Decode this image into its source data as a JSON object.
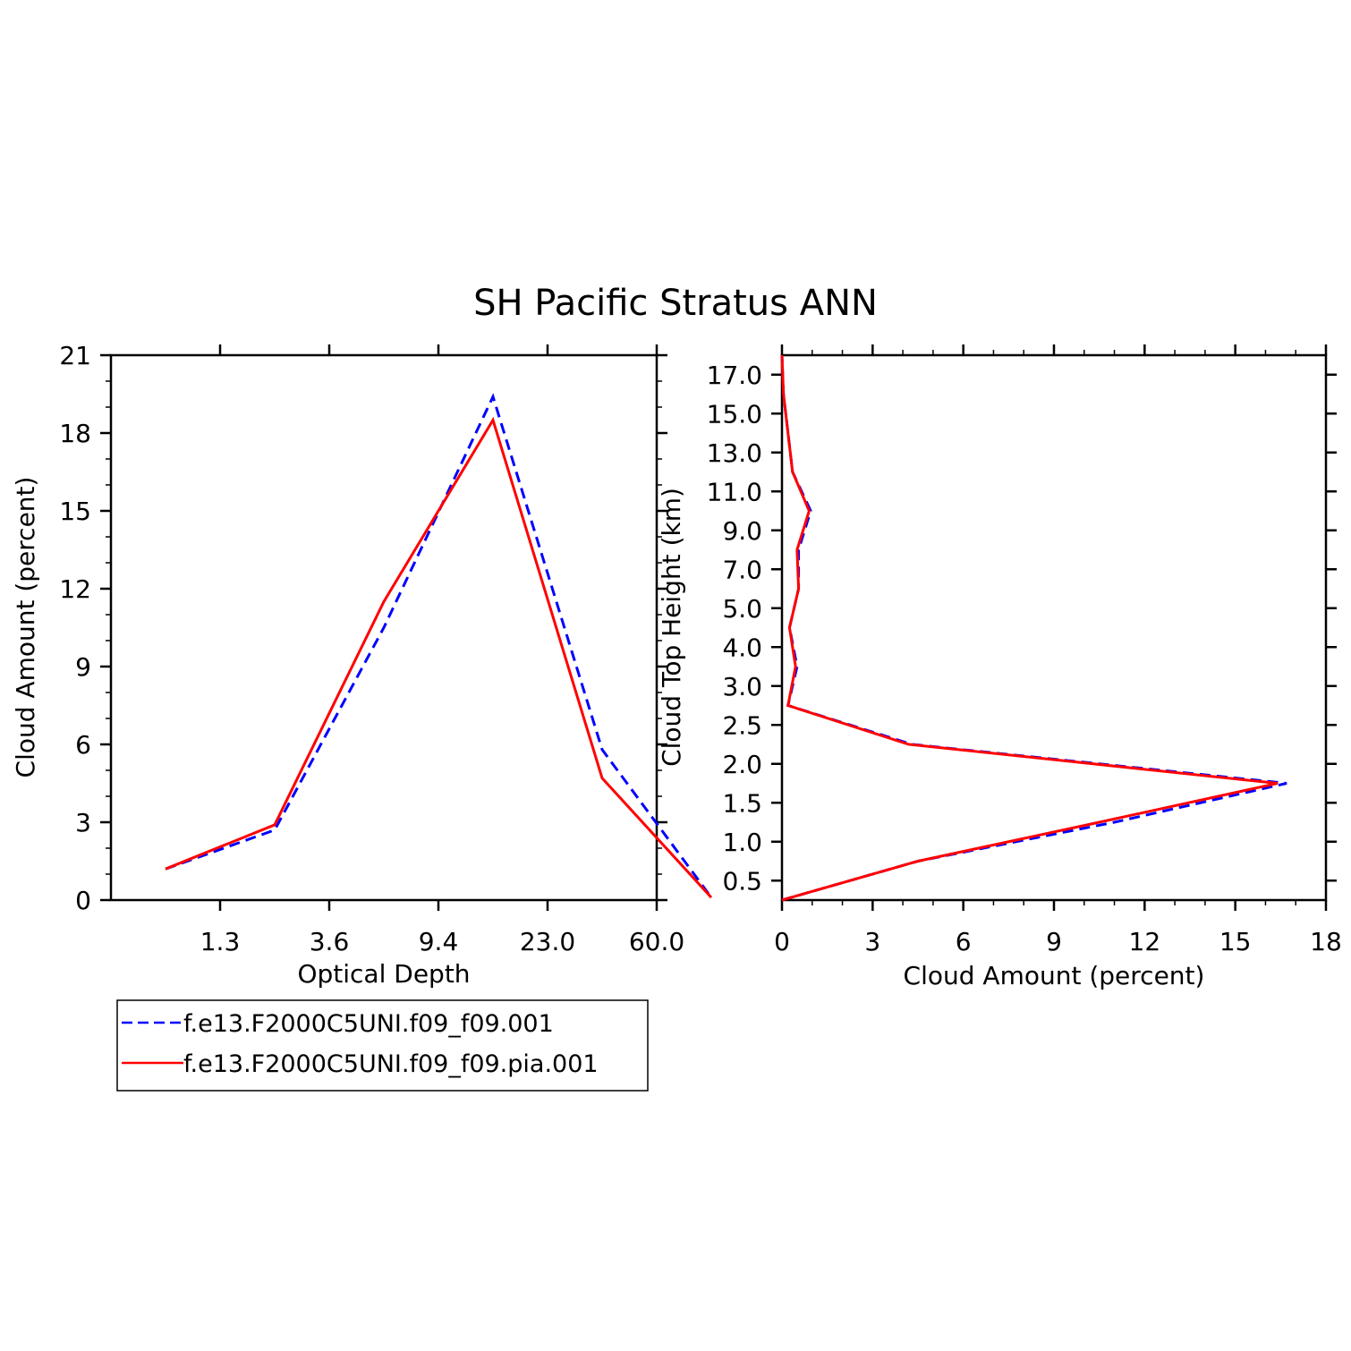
{
  "title": "SH Pacific Stratus ANN",
  "colors": {
    "series_a": "#0000ff",
    "series_b": "#ff0000",
    "axis": "#000000"
  },
  "legend": {
    "entries": [
      "f.e13.F2000C5UNI.f09_f09.001",
      "f.e13.F2000C5UNI.f09_f09.pia.001"
    ]
  },
  "chart_data": [
    {
      "type": "line",
      "xlabel": "Optical Depth",
      "ylabel": "Cloud Amount (percent)",
      "x": [
        1,
        2,
        3,
        4,
        5,
        6
      ],
      "xlim": [
        0.5,
        5.5
      ],
      "xtick_positions": [
        1.5,
        2.5,
        3.5,
        4.5,
        5.5
      ],
      "xtick_labels": [
        "1.3",
        "3.6",
        "9.4",
        "23.0",
        "60.0"
      ],
      "ylim": [
        0,
        21
      ],
      "yticks": [
        0,
        3,
        6,
        9,
        12,
        15,
        18,
        21
      ],
      "series": [
        {
          "name": "f.e13.F2000C5UNI.f09_f09.001",
          "style": "dashed",
          "color": "#0000ff",
          "values": [
            1.2,
            2.7,
            10.5,
            19.4,
            5.8,
            0.1
          ]
        },
        {
          "name": "f.e13.F2000C5UNI.f09_f09.pia.001",
          "style": "solid",
          "color": "#ff0000",
          "values": [
            1.2,
            2.9,
            11.5,
            18.5,
            4.7,
            0.1
          ]
        }
      ]
    },
    {
      "type": "line",
      "orientation": "vertical-profile",
      "xlabel": "Cloud Amount (percent)",
      "ylabel": "Cloud Top Height (km)",
      "xlim": [
        0,
        18
      ],
      "xticks": [
        0,
        3,
        6,
        9,
        12,
        15,
        18
      ],
      "ytick_labels": [
        "0.5",
        "1.0",
        "1.5",
        "2.0",
        "2.5",
        "3.0",
        "4.0",
        "5.0",
        "7.0",
        "9.0",
        "11.0",
        "13.0",
        "15.0",
        "17.0"
      ],
      "y_levels": [
        0.25,
        0.75,
        1.25,
        1.75,
        2.25,
        2.75,
        3.5,
        4.5,
        6.0,
        8.0,
        10.0,
        12.0,
        14.0,
        16.0,
        18.0
      ],
      "series": [
        {
          "name": "f.e13.F2000C5UNI.f09_f09.001",
          "style": "dashed",
          "color": "#0000ff",
          "values": [
            0.0,
            4.5,
            11.0,
            16.7,
            4.3,
            0.2,
            0.5,
            0.25,
            0.55,
            0.55,
            0.95,
            0.35,
            0.2,
            0.05,
            0.0
          ]
        },
        {
          "name": "f.e13.F2000C5UNI.f09_f09.pia.001",
          "style": "solid",
          "color": "#ff0000",
          "values": [
            0.0,
            4.5,
            10.5,
            16.4,
            4.2,
            0.2,
            0.45,
            0.25,
            0.55,
            0.5,
            0.9,
            0.35,
            0.2,
            0.05,
            0.0
          ]
        }
      ]
    }
  ]
}
